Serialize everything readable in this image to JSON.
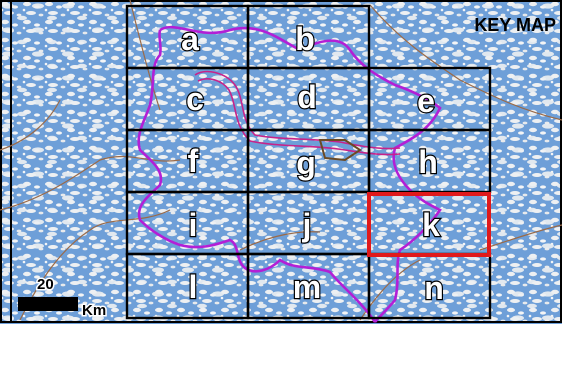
{
  "map": {
    "title": "KEY MAP",
    "grid_labels": [
      "a",
      "b",
      "c",
      "d",
      "e",
      "f",
      "g",
      "h",
      "i",
      "j",
      "k",
      "l",
      "m",
      "n"
    ],
    "highlighted_cell": "k",
    "scale_bar": {
      "value": "20",
      "unit": "Km"
    },
    "colors": {
      "water": "#6e9fd8",
      "land": "#eef0f2",
      "boundary": "#b31fd6",
      "highlight": "#e0191b",
      "grid": "#000000",
      "roads": "#9a6a48",
      "river": "#c7238a"
    }
  }
}
